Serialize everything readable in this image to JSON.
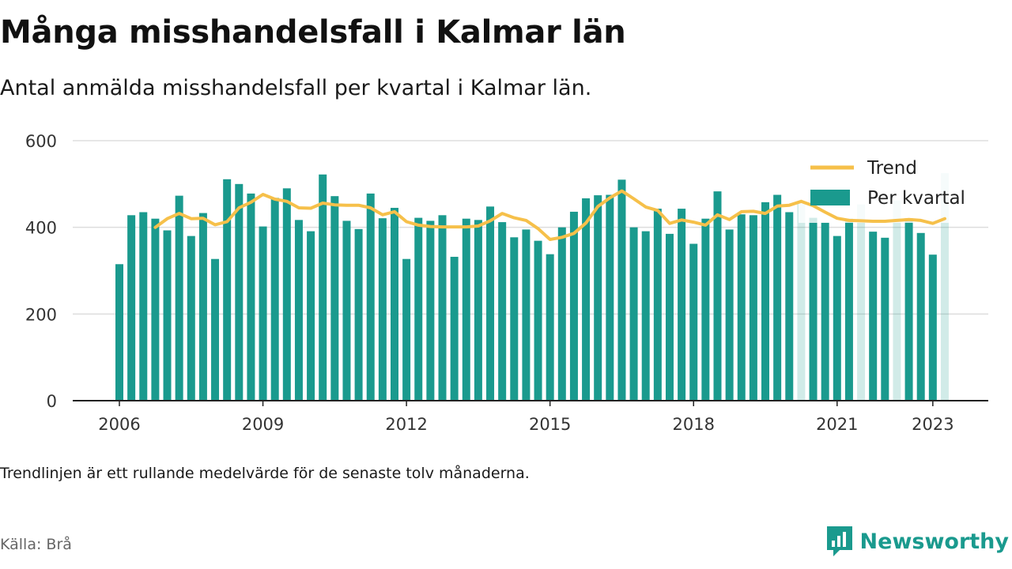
{
  "title": "Många misshandelsfall i Kalmar län",
  "subtitle": "Antal anmälda misshandelsfall per kvartal i Kalmar län.",
  "note": "Trendlinjen är ett rullande medelvärde för de senaste tolv månaderna.",
  "source": "Källa: Brå",
  "brand": {
    "name": "Newsworthy",
    "icon": "newsworthy-logo-icon"
  },
  "colors": {
    "bar": "#1a9a8e",
    "trend": "#f6c04a",
    "axis": "#222222",
    "grid": "#dddddd"
  },
  "chart_data": {
    "type": "bar",
    "x_start_year": 2006,
    "x_unit": "quarter",
    "xticks": [
      "2006",
      "2009",
      "2012",
      "2015",
      "2018",
      "2021",
      "2023"
    ],
    "yticks": [
      0,
      200,
      400,
      600
    ],
    "ylim": [
      0,
      600
    ],
    "grid": true,
    "legend_position": "top-right",
    "series": [
      {
        "name": "Per kvartal",
        "kind": "bar",
        "values": [
          315,
          428,
          435,
          420,
          393,
          473,
          380,
          433,
          327,
          511,
          500,
          478,
          402,
          468,
          490,
          417,
          391,
          522,
          472,
          415,
          396,
          478,
          421,
          445,
          327,
          422,
          415,
          428,
          332,
          420,
          417,
          448,
          412,
          377,
          395,
          369,
          338,
          400,
          436,
          467,
          474,
          475,
          510,
          400,
          391,
          443,
          385,
          443,
          362,
          420,
          483,
          395,
          430,
          428,
          458,
          475,
          435,
          460,
          422,
          411,
          380,
          420,
          453,
          390,
          376,
          462,
          421,
          387,
          337,
          525
        ]
      },
      {
        "name": "Trend",
        "kind": "line",
        "values": [
          null,
          null,
          null,
          400,
          420,
          432,
          420,
          421,
          406,
          413,
          445,
          458,
          476,
          465,
          460,
          445,
          444,
          456,
          452,
          451,
          451,
          445,
          429,
          436,
          413,
          405,
          402,
          401,
          401,
          401,
          403,
          415,
          432,
          422,
          416,
          397,
          372,
          377,
          386,
          410,
          448,
          468,
          484,
          466,
          447,
          439,
          409,
          417,
          412,
          405,
          429,
          418,
          436,
          437,
          432,
          449,
          451,
          460,
          450,
          435,
          421,
          416,
          415,
          414,
          414,
          416,
          418,
          416,
          409,
          420
        ]
      }
    ]
  }
}
